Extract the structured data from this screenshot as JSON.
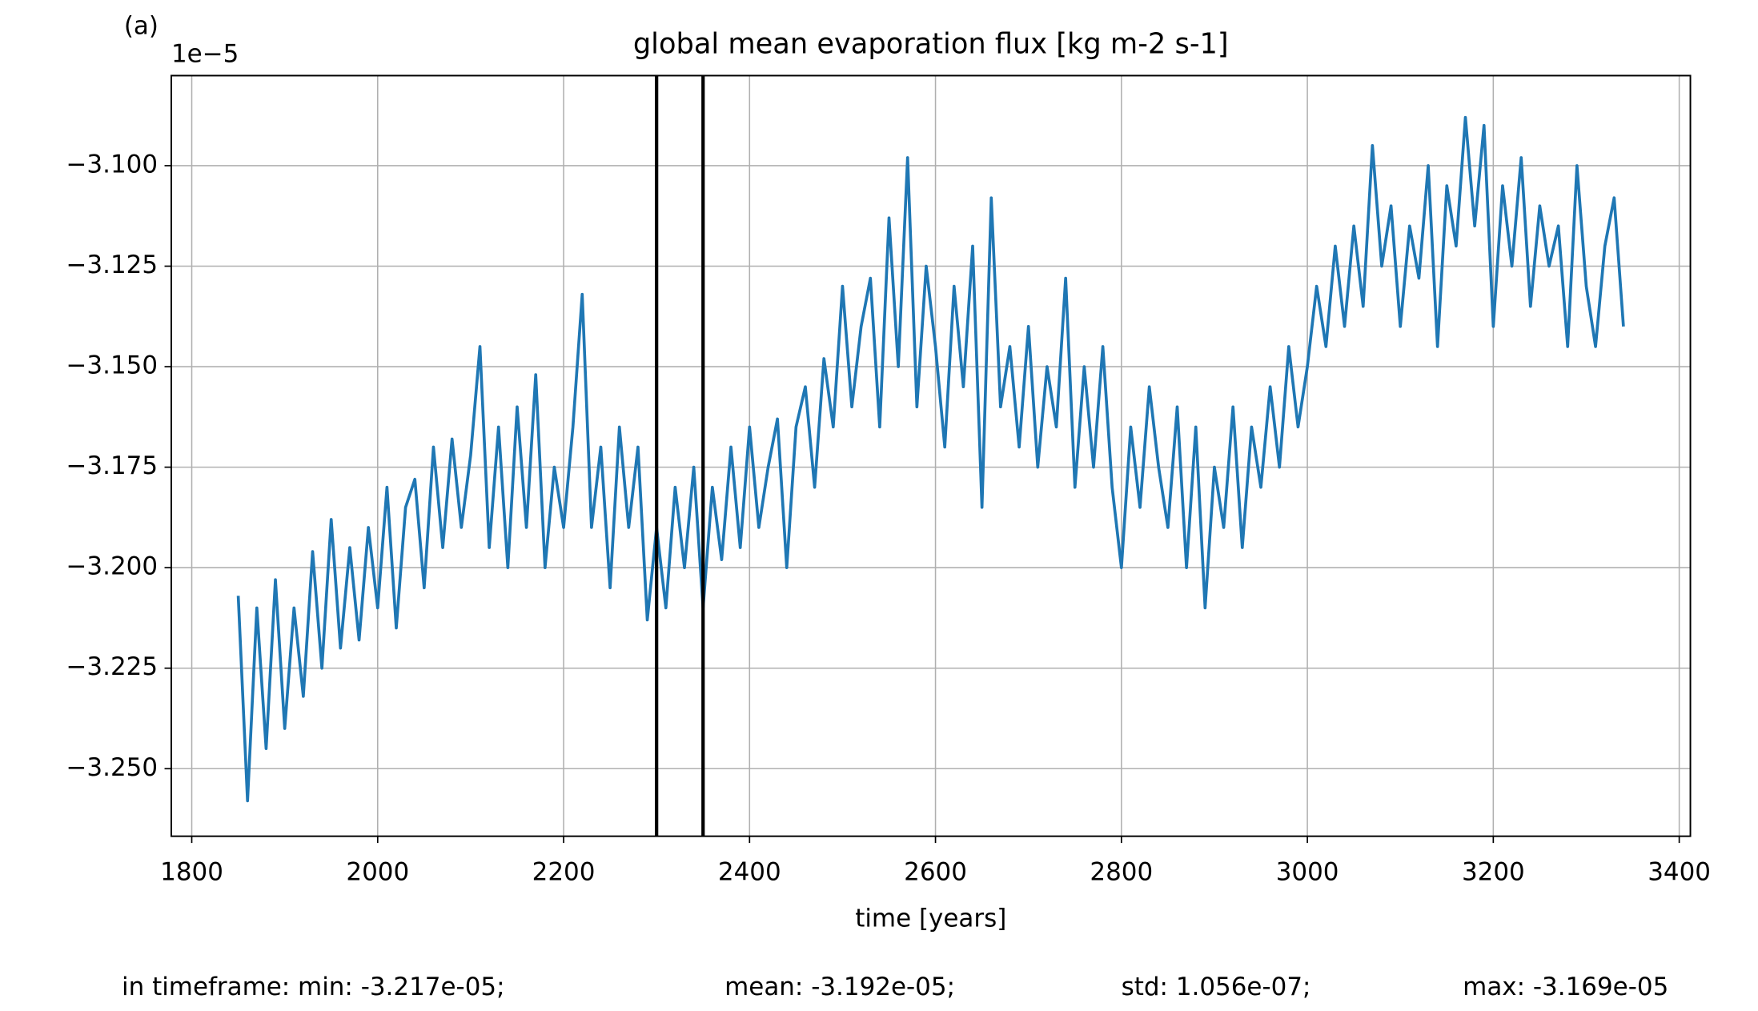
{
  "chart_data": {
    "type": "line",
    "panel_label": "(a)",
    "title": "global mean evaporation flux [kg m-2 s-1]",
    "x_label": "time [years]",
    "y_offset_label": "1e−5",
    "x": [
      1850,
      1860,
      1870,
      1880,
      1890,
      1900,
      1910,
      1920,
      1930,
      1940,
      1950,
      1960,
      1970,
      1980,
      1990,
      2000,
      2010,
      2020,
      2030,
      2040,
      2050,
      2060,
      2070,
      2080,
      2090,
      2100,
      2110,
      2120,
      2130,
      2140,
      2150,
      2160,
      2170,
      2180,
      2190,
      2200,
      2210,
      2220,
      2230,
      2240,
      2250,
      2260,
      2270,
      2280,
      2290,
      2300,
      2310,
      2320,
      2330,
      2340,
      2350,
      2360,
      2370,
      2380,
      2390,
      2400,
      2410,
      2420,
      2430,
      2440,
      2450,
      2460,
      2470,
      2480,
      2490,
      2500,
      2510,
      2520,
      2530,
      2540,
      2550,
      2560,
      2570,
      2580,
      2590,
      2600,
      2610,
      2620,
      2630,
      2640,
      2650,
      2660,
      2670,
      2680,
      2690,
      2700,
      2710,
      2720,
      2730,
      2740,
      2750,
      2760,
      2770,
      2780,
      2790,
      2800,
      2810,
      2820,
      2830,
      2840,
      2850,
      2860,
      2870,
      2880,
      2890,
      2900,
      2910,
      2920,
      2930,
      2940,
      2950,
      2960,
      2970,
      2980,
      2990,
      3000,
      3010,
      3020,
      3030,
      3040,
      3050,
      3060,
      3070,
      3080,
      3090,
      3100,
      3110,
      3120,
      3130,
      3140,
      3150,
      3160,
      3170,
      3180,
      3190,
      3200,
      3210,
      3220,
      3230,
      3240,
      3250,
      3260,
      3270,
      3280,
      3290,
      3300,
      3310,
      3320,
      3330,
      3340
    ],
    "series": [
      {
        "color": "#1f77b4",
        "values": [
          -3.207,
          -3.258,
          -3.21,
          -3.245,
          -3.203,
          -3.24,
          -3.21,
          -3.232,
          -3.196,
          -3.225,
          -3.188,
          -3.22,
          -3.195,
          -3.218,
          -3.19,
          -3.21,
          -3.18,
          -3.215,
          -3.185,
          -3.178,
          -3.205,
          -3.17,
          -3.195,
          -3.168,
          -3.19,
          -3.172,
          -3.145,
          -3.195,
          -3.165,
          -3.2,
          -3.16,
          -3.19,
          -3.152,
          -3.2,
          -3.175,
          -3.19,
          -3.165,
          -3.132,
          -3.19,
          -3.17,
          -3.205,
          -3.165,
          -3.19,
          -3.17,
          -3.213,
          -3.19,
          -3.21,
          -3.18,
          -3.2,
          -3.175,
          -3.21,
          -3.18,
          -3.198,
          -3.17,
          -3.195,
          -3.165,
          -3.19,
          -3.175,
          -3.163,
          -3.2,
          -3.165,
          -3.155,
          -3.18,
          -3.148,
          -3.165,
          -3.13,
          -3.16,
          -3.14,
          -3.128,
          -3.165,
          -3.113,
          -3.15,
          -3.098,
          -3.16,
          -3.125,
          -3.145,
          -3.17,
          -3.13,
          -3.155,
          -3.12,
          -3.185,
          -3.108,
          -3.16,
          -3.145,
          -3.17,
          -3.14,
          -3.175,
          -3.15,
          -3.165,
          -3.128,
          -3.18,
          -3.15,
          -3.175,
          -3.145,
          -3.18,
          -3.2,
          -3.165,
          -3.185,
          -3.155,
          -3.175,
          -3.19,
          -3.16,
          -3.2,
          -3.165,
          -3.21,
          -3.175,
          -3.19,
          -3.16,
          -3.195,
          -3.165,
          -3.18,
          -3.155,
          -3.175,
          -3.145,
          -3.165,
          -3.15,
          -3.13,
          -3.145,
          -3.12,
          -3.14,
          -3.115,
          -3.135,
          -3.095,
          -3.125,
          -3.11,
          -3.14,
          -3.115,
          -3.128,
          -3.1,
          -3.145,
          -3.105,
          -3.12,
          -3.088,
          -3.115,
          -3.09,
          -3.14,
          -3.105,
          -3.125,
          -3.098,
          -3.135,
          -3.11,
          -3.125,
          -3.115,
          -3.145,
          -3.1,
          -3.13,
          -3.145,
          -3.12,
          -3.108,
          -3.14
        ]
      }
    ],
    "vlines": [
      2300,
      2350
    ],
    "vline_color": "#000000",
    "xlim": [
      1778,
      3412
    ],
    "xticks": [
      1800,
      2000,
      2200,
      2400,
      2600,
      2800,
      3000,
      3200,
      3400
    ],
    "ylim": [
      -3.2668,
      -3.0776
    ],
    "yticks": [
      {
        "value": -3.1,
        "label": "−3.100"
      },
      {
        "value": -3.125,
        "label": "−3.125"
      },
      {
        "value": -3.15,
        "label": "−3.150"
      },
      {
        "value": -3.175,
        "label": "−3.175"
      },
      {
        "value": -3.2,
        "label": "−3.200"
      },
      {
        "value": -3.225,
        "label": "−3.225"
      },
      {
        "value": -3.25,
        "label": "−3.250"
      }
    ],
    "grid": true,
    "stats": [
      "in timeframe: min: -3.217e-05;",
      "mean: -3.192e-05;",
      "std: 1.056e-07;",
      "max: -3.169e-05"
    ]
  }
}
